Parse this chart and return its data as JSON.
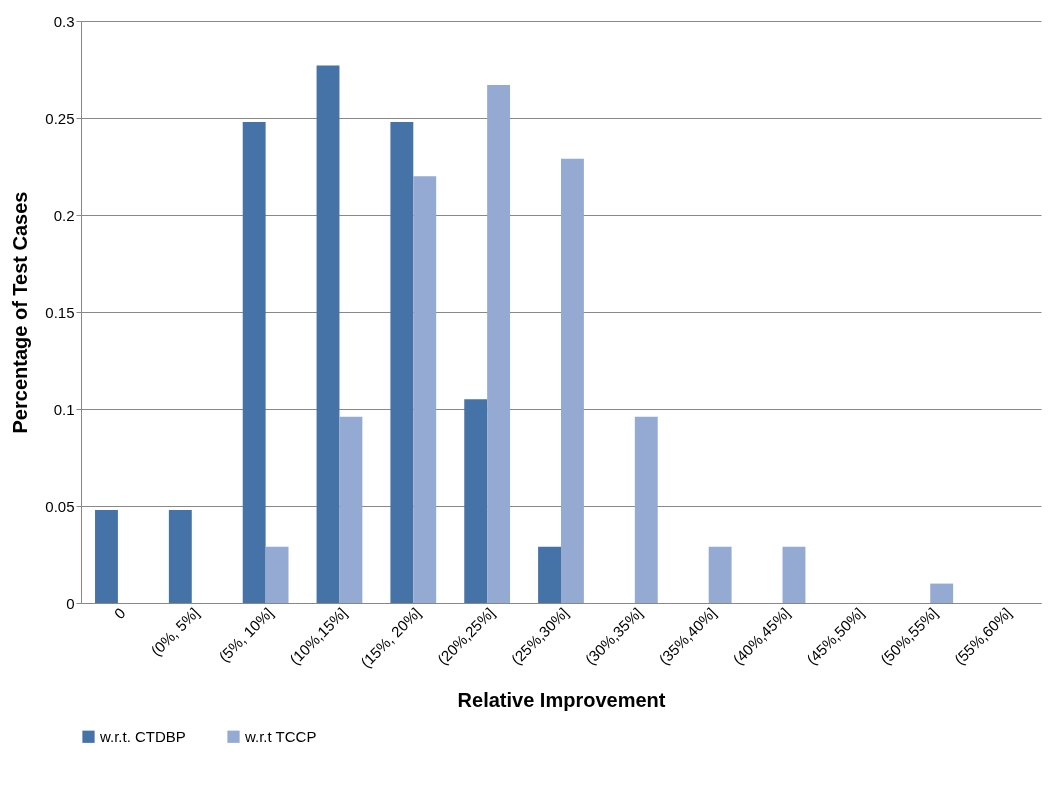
{
  "chart_data": {
    "type": "bar",
    "xlabel": "Relative Improvement",
    "ylabel": "Percentage of Test Cases",
    "categories": [
      "0",
      "(0%, 5%]",
      "(5%, 10%]",
      "(10%,15%]",
      "(15%, 20%]",
      "(20%,25%]",
      "(25%,30%]",
      "(30%,35%]",
      "(35%,40%]",
      "(40%,45%]",
      "(45%,50%]",
      "(50%,55%]",
      "(55%,60%]"
    ],
    "series": [
      {
        "name": "w.r.t. CTDBP",
        "color": "#4573a7",
        "values": [
          0.048,
          0.048,
          0.248,
          0.277,
          0.248,
          0.105,
          0.029,
          0,
          0,
          0,
          0,
          0,
          0
        ]
      },
      {
        "name": "w.r.t TCCP",
        "color": "#94aad3",
        "values": [
          0,
          0,
          0.029,
          0.096,
          0.22,
          0.267,
          0.229,
          0.096,
          0.029,
          0.029,
          0,
          0.01,
          0
        ]
      }
    ],
    "ylim": [
      0,
      0.3
    ],
    "yticks": [
      0,
      0.05,
      0.1,
      0.15,
      0.2,
      0.25,
      0.3
    ],
    "grid": "y",
    "legend": "bottom"
  }
}
